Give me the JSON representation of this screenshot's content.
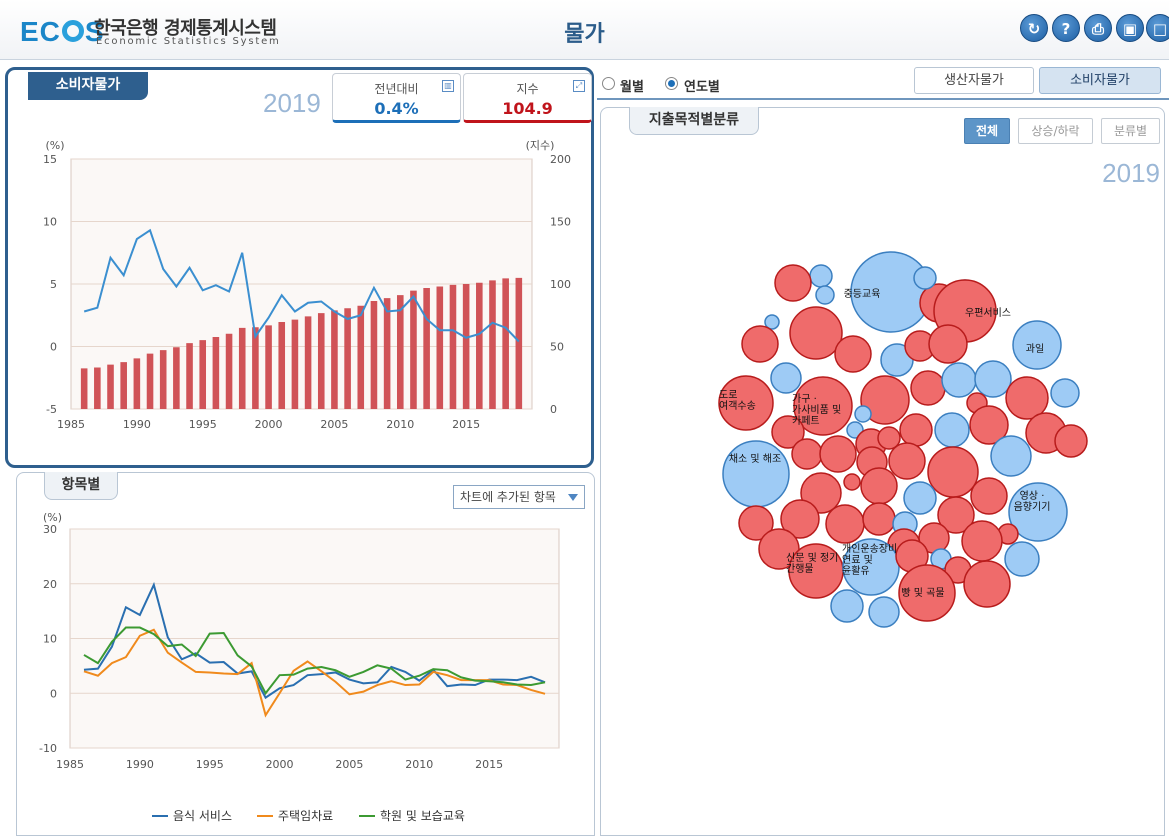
{
  "header": {
    "logo_text": "ECOS",
    "logo_kr": "한국은행 경제통계시스템",
    "logo_en": "Economic Statistics System",
    "title": "물가",
    "icons": [
      "refresh-icon",
      "help-icon",
      "print-icon",
      "save-icon",
      "fullscreen-icon"
    ]
  },
  "cpi_panel": {
    "tab": "소비자물가",
    "year": "2019",
    "kpi_yoy": {
      "label": "전년대비",
      "value": "0.4%"
    },
    "kpi_index": {
      "label": "지수",
      "value": "104.9"
    }
  },
  "items_panel": {
    "tab": "항목별",
    "dropdown": "차트에 추가된 항목"
  },
  "right_panel": {
    "radio_monthly": "월별",
    "radio_yearly": "연도별",
    "seg_producer": "생산자물가",
    "seg_consumer": "소비자물가",
    "tab": "지출목적별분류",
    "filter_all": "전체",
    "filter_updown": "상승/하락",
    "filter_class": "분류별",
    "year": "2019"
  },
  "colors": {
    "bar": "#d05357",
    "line_blue": "#3b8fd0",
    "up_red": "#ef6b6b",
    "down_blue": "#9ecbf5"
  },
  "chart_data": [
    {
      "type": "bar+line",
      "x": [
        1986,
        1987,
        1988,
        1989,
        1990,
        1991,
        1992,
        1993,
        1994,
        1995,
        1996,
        1997,
        1998,
        1999,
        2000,
        2001,
        2002,
        2003,
        2004,
        2005,
        2006,
        2007,
        2008,
        2009,
        2010,
        2011,
        2012,
        2013,
        2014,
        2015,
        2016,
        2017,
        2018,
        2019
      ],
      "series": [
        {
          "values": [
            32.5,
            33.2,
            35.5,
            37.5,
            40.5,
            44.3,
            47.1,
            49.4,
            52.7,
            55.1,
            57.6,
            60.2,
            64.9,
            65.4,
            66.9,
            69.6,
            71.5,
            74.1,
            76.7,
            78.9,
            80.6,
            82.6,
            86.4,
            88.7,
            91.1,
            94.7,
            96.8,
            98.0,
            99.3,
            100.0,
            101.0,
            102.9,
            104.5,
            104.9
          ]
        },
        {
          "values": [
            2.8,
            3.1,
            7.1,
            5.7,
            8.6,
            9.3,
            6.2,
            4.8,
            6.3,
            4.5,
            4.9,
            4.4,
            7.5,
            0.8,
            2.3,
            4.1,
            2.8,
            3.5,
            3.6,
            2.8,
            2.2,
            2.5,
            4.7,
            2.8,
            2.9,
            4.0,
            2.2,
            1.3,
            1.3,
            0.7,
            1.0,
            1.9,
            1.5,
            0.4
          ]
        }
      ],
      "ylabel": "(%)",
      "y2label": "(지수)",
      "ylim": [
        -5,
        15
      ],
      "y2lim": [
        0,
        200
      ],
      "yticks": [
        -5,
        0,
        5,
        10,
        15
      ],
      "y2ticks": [
        0,
        50,
        100,
        150,
        200
      ],
      "xticks": [
        1985,
        1990,
        1995,
        2000,
        2005,
        2010,
        2015
      ]
    },
    {
      "type": "line",
      "x": [
        1986,
        1987,
        1988,
        1989,
        1990,
        1991,
        1992,
        1993,
        1994,
        1995,
        1996,
        1997,
        1998,
        1999,
        2000,
        2001,
        2002,
        2003,
        2004,
        2005,
        2006,
        2007,
        2008,
        2009,
        2010,
        2011,
        2012,
        2013,
        2014,
        2015,
        2016,
        2017,
        2018,
        2019
      ],
      "series": [
        {
          "name": "음식 서비스",
          "values": [
            4.3,
            4.5,
            8.5,
            15.7,
            14.3,
            19.8,
            10.2,
            6.2,
            7.3,
            5.6,
            5.7,
            3.6,
            4.0,
            -0.8,
            0.9,
            1.5,
            3.3,
            3.5,
            3.8,
            2.5,
            1.8,
            2.0,
            4.8,
            3.9,
            2.3,
            4.3,
            1.3,
            1.6,
            1.5,
            2.5,
            2.5,
            2.4,
            3.0,
            2.0
          ]
        },
        {
          "name": "주택임차료",
          "values": [
            4.0,
            3.2,
            5.5,
            6.6,
            10.5,
            11.6,
            7.4,
            5.6,
            3.9,
            3.8,
            3.6,
            3.5,
            5.5,
            -4.0,
            0.0,
            4.1,
            5.8,
            4.0,
            2.1,
            -0.2,
            0.3,
            1.5,
            2.2,
            1.5,
            1.6,
            3.9,
            3.3,
            2.4,
            2.4,
            2.4,
            1.6,
            1.5,
            0.6,
            -0.1
          ]
        },
        {
          "name": "학원 및 보습교육",
          "values": [
            7.0,
            5.5,
            9.4,
            12.0,
            12.0,
            10.8,
            8.6,
            8.9,
            6.8,
            10.9,
            11.0,
            6.9,
            4.9,
            0.0,
            3.3,
            3.4,
            4.5,
            4.8,
            4.2,
            3.0,
            3.9,
            5.1,
            4.5,
            2.5,
            3.2,
            4.4,
            4.2,
            2.9,
            2.3,
            2.2,
            2.0,
            1.6,
            1.5,
            2.0
          ]
        }
      ],
      "ylabel": "(%)",
      "ylim": [
        -10,
        30
      ],
      "yticks": [
        -10,
        0,
        10,
        20,
        30
      ],
      "xticks": [
        1985,
        1990,
        1995,
        2000,
        2005,
        2010,
        2015
      ],
      "legend": "bottom"
    },
    {
      "type": "bubble",
      "labels": [
        "중등교육",
        "우편서비스",
        "과일",
        "도로 여객수송",
        "가구 · 가사비품 및 카페트",
        "채소 및 해조",
        "영상 · 음향기기",
        "신문 및 정기 간행물",
        "개인운송장비 연료 및 윤활유",
        "빵 및 곡물"
      ]
    }
  ]
}
